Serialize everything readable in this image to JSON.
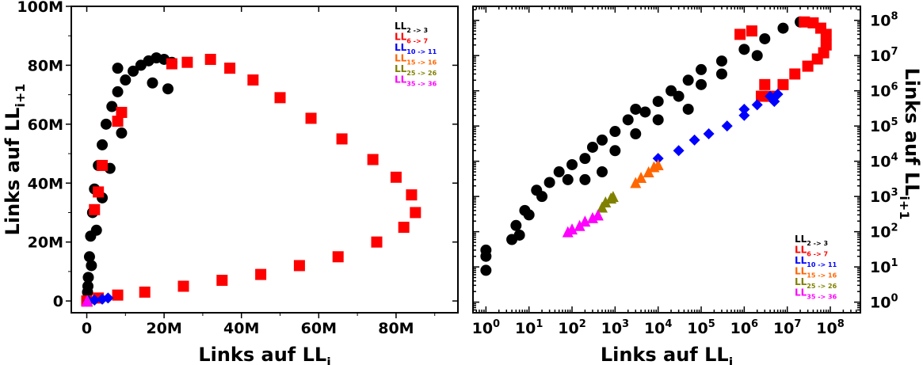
{
  "chart_data": [
    {
      "type": "scatter",
      "xlabel": "Links auf LL",
      "xlabel_sub": "i",
      "ylabel": "Links auf LL",
      "ylabel_sub": "i+1",
      "xlim": [
        -4000000,
        96000000
      ],
      "ylim": [
        -4000000,
        100000000
      ],
      "x_ticks": [
        0,
        20000000,
        40000000,
        60000000,
        80000000
      ],
      "x_tick_labels": [
        "0",
        "20M",
        "40M",
        "60M",
        "80M"
      ],
      "y_ticks": [
        0,
        20000000,
        40000000,
        60000000,
        80000000,
        100000000
      ],
      "y_tick_labels": [
        "0",
        "20M",
        "40M",
        "60M",
        "80M",
        "100M"
      ],
      "grid": false,
      "legend_position": "top-right",
      "series": [
        {
          "name": "LL",
          "name_sub": "2 -> 3",
          "color": "#000000",
          "marker": "circle",
          "points": [
            [
              0,
              0
            ],
            [
              200000,
              3000000
            ],
            [
              400000,
              8000000
            ],
            [
              700000,
              15000000
            ],
            [
              1000000,
              22000000
            ],
            [
              1500000,
              30000000
            ],
            [
              2000000,
              38000000
            ],
            [
              3000000,
              46000000
            ],
            [
              4000000,
              53000000
            ],
            [
              5000000,
              60000000
            ],
            [
              6500000,
              66000000
            ],
            [
              8000000,
              71000000
            ],
            [
              10000000,
              75000000
            ],
            [
              12000000,
              78000000
            ],
            [
              14000000,
              80000000
            ],
            [
              16000000,
              81500000
            ],
            [
              18000000,
              82500000
            ],
            [
              20000000,
              82000000
            ],
            [
              22000000,
              81000000
            ],
            [
              8000000,
              79000000
            ],
            [
              17000000,
              74000000
            ],
            [
              21000000,
              72000000
            ],
            [
              9000000,
              57000000
            ],
            [
              6000000,
              45000000
            ],
            [
              4000000,
              35000000
            ],
            [
              2500000,
              24000000
            ],
            [
              1200000,
              12000000
            ],
            [
              300000,
              5000000
            ]
          ]
        },
        {
          "name": "LL",
          "name_sub": "6 -> 7",
          "color": "#ff0000",
          "marker": "square",
          "points": [
            [
              0,
              0
            ],
            [
              3000000,
              1000000
            ],
            [
              8000000,
              2000000
            ],
            [
              15000000,
              3000000
            ],
            [
              25000000,
              5000000
            ],
            [
              35000000,
              7000000
            ],
            [
              45000000,
              9000000
            ],
            [
              55000000,
              12000000
            ],
            [
              65000000,
              15000000
            ],
            [
              75000000,
              20000000
            ],
            [
              82000000,
              25000000
            ],
            [
              85000000,
              30000000
            ],
            [
              84000000,
              36000000
            ],
            [
              80000000,
              42000000
            ],
            [
              74000000,
              48000000
            ],
            [
              66000000,
              55000000
            ],
            [
              58000000,
              62000000
            ],
            [
              50000000,
              69000000
            ],
            [
              43000000,
              75000000
            ],
            [
              37000000,
              79000000
            ],
            [
              32000000,
              82000000
            ],
            [
              26000000,
              81000000
            ],
            [
              22000000,
              80500000
            ],
            [
              9000000,
              64000000
            ],
            [
              8000000,
              61000000
            ],
            [
              4000000,
              46000000
            ],
            [
              3000000,
              37000000
            ],
            [
              2000000,
              31000000
            ]
          ]
        },
        {
          "name": "LL",
          "name_sub": "10 -> 11",
          "color": "#0000ff",
          "marker": "diamond",
          "points": [
            [
              500000,
              0
            ],
            [
              2000000,
              300000
            ],
            [
              4000000,
              600000
            ],
            [
              5500000,
              1000000
            ]
          ]
        },
        {
          "name": "LL",
          "name_sub": "15 -> 16",
          "color": "#ff6600",
          "marker": "triangle",
          "points": [
            [
              100000,
              0
            ],
            [
              200000,
              0
            ]
          ]
        },
        {
          "name": "LL",
          "name_sub": "25 -> 26",
          "color": "#808000",
          "marker": "triangle",
          "points": [
            [
              50000,
              0
            ]
          ]
        },
        {
          "name": "LL",
          "name_sub": "35 -> 36",
          "color": "#ff00ff",
          "marker": "triangle",
          "points": [
            [
              0,
              0
            ],
            [
              100000,
              0
            ]
          ]
        }
      ]
    },
    {
      "type": "scatter",
      "xlabel": "Links auf LL",
      "xlabel_sub": "i",
      "ylabel": "Links auf LL",
      "ylabel_sub": "i+1",
      "x_scale": "log",
      "y_scale": "log",
      "xlim": [
        0.5,
        500000000
      ],
      "ylim": [
        0.5,
        250000000
      ],
      "x_ticks": [
        1,
        10,
        100,
        1000,
        10000,
        100000,
        1000000,
        10000000,
        100000000
      ],
      "x_tick_labels": [
        [
          "10",
          "0"
        ],
        [
          "10",
          "1"
        ],
        [
          "10",
          "2"
        ],
        [
          "10",
          "3"
        ],
        [
          "10",
          "4"
        ],
        [
          "10",
          "5"
        ],
        [
          "10",
          "6"
        ],
        [
          "10",
          "7"
        ],
        [
          "10",
          "8"
        ]
      ],
      "y_ticks": [
        1,
        10,
        100,
        1000,
        10000,
        100000,
        1000000,
        10000000,
        100000000
      ],
      "y_tick_labels": [
        [
          "10",
          "0"
        ],
        [
          "10",
          "1"
        ],
        [
          "10",
          "2"
        ],
        [
          "10",
          "3"
        ],
        [
          "10",
          "4"
        ],
        [
          "10",
          "5"
        ],
        [
          "10",
          "6"
        ],
        [
          "10",
          "7"
        ],
        [
          "10",
          "8"
        ]
      ],
      "y_axis_side": "right",
      "grid": false,
      "legend_position": "bottom-right",
      "series": [
        {
          "name": "LL",
          "name_sub": "2 -> 3",
          "color": "#000000",
          "marker": "circle",
          "points": [
            [
              1,
              8
            ],
            [
              1,
              20
            ],
            [
              1,
              30
            ],
            [
              4,
              60
            ],
            [
              5,
              150
            ],
            [
              6,
              80
            ],
            [
              8,
              400
            ],
            [
              10,
              300
            ],
            [
              15,
              1500
            ],
            [
              20,
              1000
            ],
            [
              30,
              2500
            ],
            [
              50,
              5000
            ],
            [
              80,
              3000
            ],
            [
              100,
              8000
            ],
            [
              200,
              12000
            ],
            [
              300,
              25000
            ],
            [
              500,
              40000
            ],
            [
              1000,
              70000
            ],
            [
              2000,
              150000
            ],
            [
              3000,
              300000
            ],
            [
              5000,
              250000
            ],
            [
              10000,
              500000
            ],
            [
              20000,
              1000000
            ],
            [
              50000,
              2000000
            ],
            [
              100000,
              4000000
            ],
            [
              300000,
              7000000
            ],
            [
              1000000,
              15000000
            ],
            [
              3000000,
              30000000
            ],
            [
              8000000,
              60000000
            ],
            [
              20000000,
              90000000
            ],
            [
              10000,
              150000
            ],
            [
              3000,
              60000
            ],
            [
              1000,
              20000
            ],
            [
              30000,
              700000
            ],
            [
              300000,
              3000000
            ],
            [
              2000000,
              10000000
            ],
            [
              50000,
              300000
            ],
            [
              500,
              5000
            ],
            [
              200,
              3000
            ],
            [
              100000,
              1500000
            ]
          ]
        },
        {
          "name": "LL",
          "name_sub": "6 -> 7",
          "color": "#ff0000",
          "marker": "square",
          "points": [
            [
              25000000,
              90000000
            ],
            [
              40000000,
              85000000
            ],
            [
              60000000,
              60000000
            ],
            [
              80000000,
              40000000
            ],
            [
              80000000,
              20000000
            ],
            [
              70000000,
              12000000
            ],
            [
              50000000,
              8000000
            ],
            [
              30000000,
              5000000
            ],
            [
              15000000,
              3000000
            ],
            [
              8000000,
              1500000
            ],
            [
              4000000,
              700000
            ],
            [
              3000000,
              1500000
            ],
            [
              2500000,
              700000
            ],
            [
              1500000,
              50000000
            ],
            [
              800000,
              40000000
            ]
          ]
        },
        {
          "name": "LL",
          "name_sub": "10 -> 11",
          "color": "#0000ff",
          "marker": "diamond",
          "points": [
            [
              10000,
              12000
            ],
            [
              30000,
              20000
            ],
            [
              70000,
              40000
            ],
            [
              150000,
              60000
            ],
            [
              400000,
              100000
            ],
            [
              1000000,
              200000
            ],
            [
              2000000,
              400000
            ],
            [
              4000000,
              700000
            ],
            [
              6000000,
              800000
            ],
            [
              1000000,
              300000
            ],
            [
              5000000,
              500000
            ]
          ]
        },
        {
          "name": "LL",
          "name_sub": "15 -> 16",
          "color": "#ff6600",
          "marker": "triangle",
          "points": [
            [
              3000,
              2500
            ],
            [
              4000,
              3500
            ],
            [
              6000,
              5000
            ],
            [
              8000,
              7000
            ],
            [
              10000,
              8000
            ]
          ]
        },
        {
          "name": "LL",
          "name_sub": "25 -> 26",
          "color": "#808000",
          "marker": "triangle",
          "points": [
            [
              400,
              300
            ],
            [
              500,
              500
            ],
            [
              600,
              700
            ],
            [
              800,
              900
            ],
            [
              900,
              1000
            ]
          ]
        },
        {
          "name": "LL",
          "name_sub": "35 -> 36",
          "color": "#ff00ff",
          "marker": "triangle",
          "points": [
            [
              80,
              100
            ],
            [
              100,
              120
            ],
            [
              150,
              150
            ],
            [
              200,
              200
            ],
            [
              300,
              250
            ],
            [
              400,
              300
            ]
          ]
        }
      ]
    }
  ]
}
